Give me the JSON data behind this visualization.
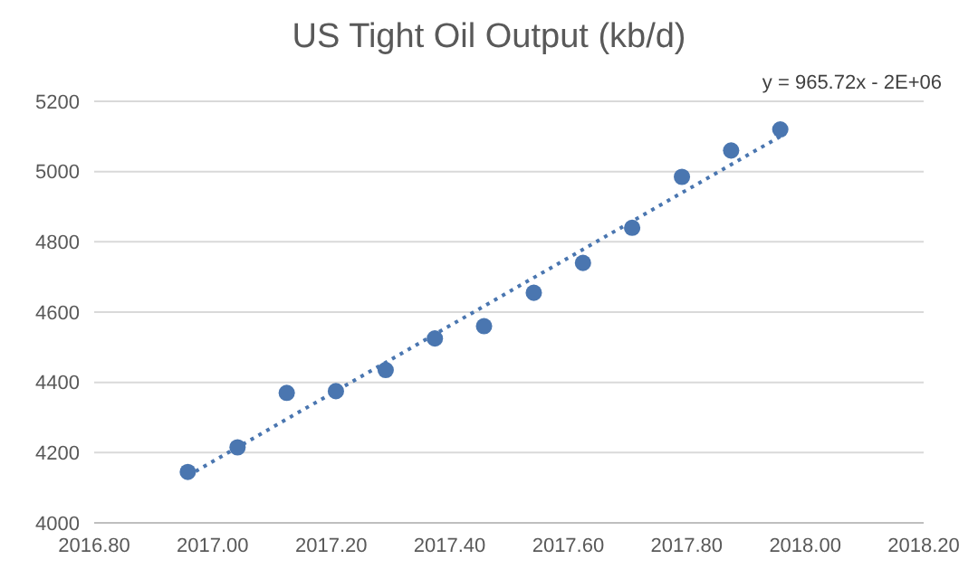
{
  "chart_data": {
    "type": "scatter",
    "title": "US Tight Oil Output (kb/d)",
    "annotations": [
      "y = 965.72x - 2E+06"
    ],
    "series": [
      {
        "color": "#4a76b0",
        "marker": "circle",
        "x": [
          2016.958,
          2017.042,
          2017.125,
          2017.208,
          2017.292,
          2017.375,
          2017.458,
          2017.542,
          2017.625,
          2017.708,
          2017.792,
          2017.875,
          2017.958
        ],
        "values": [
          4145,
          4215,
          4370,
          4375,
          4435,
          4525,
          4560,
          4655,
          4740,
          4840,
          4985,
          5060,
          5120
        ]
      },
      {
        "type": "line",
        "color": "#4a76b0",
        "line_style": "dotted",
        "x": [
          2016.958,
          2017.958
        ],
        "values": [
          4134,
          5100
        ]
      }
    ],
    "grid": "y",
    "xlim": [
      2016.8,
      2018.2
    ],
    "xticks": [
      {
        "value": 2016.8,
        "label": "2016.80"
      },
      {
        "value": 2017,
        "label": "2017.00"
      },
      {
        "value": 2017.2,
        "label": "2017.20"
      },
      {
        "value": 2017.4,
        "label": "2017.40"
      },
      {
        "value": 2017.6,
        "label": "2017.60"
      },
      {
        "value": 2017.8,
        "label": "2017.80"
      },
      {
        "value": 2018,
        "label": "2018.00"
      },
      {
        "value": 2018.2,
        "label": "2018.20"
      }
    ],
    "ylim": [
      4000,
      5200
    ],
    "yticks": [
      4000,
      4200,
      4400,
      4600,
      4800,
      5000,
      5200
    ]
  }
}
